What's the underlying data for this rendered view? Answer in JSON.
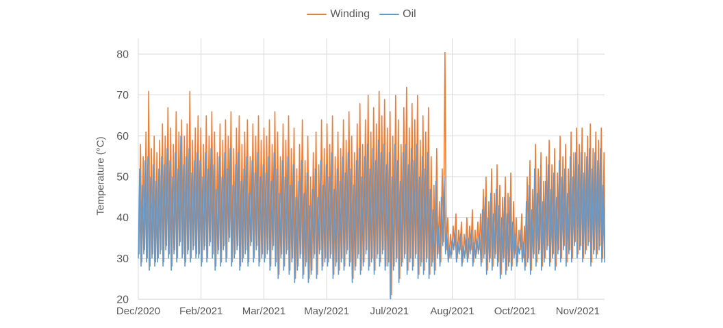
{
  "page": {
    "background": "#FFFFFF"
  },
  "legend": {
    "position": "top-center"
  },
  "chart_data": {
    "type": "line",
    "title": "",
    "ylabel": "Temperature (°C)",
    "ylim": [
      20,
      83.85
    ],
    "yticks": [
      20,
      30,
      40,
      50,
      60,
      70,
      80
    ],
    "x_tick_labels": [
      "Dec/2020",
      "Feb/2021",
      "Mar/2021",
      "May/2021",
      "Jul/2021",
      "Aug/2021",
      "Oct/2021",
      "Nov/2021"
    ],
    "x_range_note": "continuous time axis Dec/2020 through early Dec/2021, evenly spaced ticks",
    "grid": true,
    "legend_position": "top",
    "grid_color": "#D9D9D9",
    "text_color": "#595959",
    "sampling": "noisy high-frequency sensor data approximated as a trough/peak envelope; each index ≈ 2 days; rendered as triangle wave troughs[i] -> peaks[i]",
    "series": [
      {
        "name": "Winding",
        "color": "#ED7D31",
        "troughs_from": "Oil",
        "trough_offset": 1,
        "phase": 0.3,
        "peaks": [
          58,
          55,
          61,
          71,
          57,
          60,
          56,
          59,
          63,
          60,
          67,
          62,
          58,
          66,
          61,
          64,
          60,
          63,
          71,
          59,
          62,
          65,
          62,
          58,
          65,
          60,
          66,
          61,
          56,
          63,
          59,
          64,
          60,
          66,
          57,
          62,
          65,
          58,
          61,
          64,
          55,
          63,
          60,
          65,
          59,
          62,
          60,
          64,
          58,
          66,
          61,
          55,
          63,
          59,
          65,
          57,
          62,
          52,
          58,
          64,
          54,
          60,
          50,
          56,
          61,
          53,
          64,
          57,
          63,
          58,
          65,
          55,
          61,
          57,
          64,
          59,
          66,
          60,
          56,
          63,
          68,
          58,
          64,
          70,
          61,
          67,
          63,
          71,
          65,
          69,
          62,
          66,
          60,
          70,
          64,
          58,
          67,
          72,
          62,
          68,
          64,
          70,
          59,
          65,
          61,
          67,
          55,
          48,
          57,
          44,
          52,
          80.5,
          40,
          36,
          38,
          41,
          37,
          39,
          36,
          40,
          38,
          42,
          37,
          39,
          41,
          47,
          50,
          44,
          52,
          46,
          53,
          48,
          45,
          50,
          46,
          51,
          44,
          40,
          37,
          41,
          38,
          50,
          54,
          47,
          58,
          52,
          56,
          49,
          55,
          59,
          53,
          57,
          51,
          60,
          55,
          58,
          52,
          61,
          56,
          62,
          58,
          62,
          56,
          60,
          63,
          57,
          61,
          59,
          62,
          56,
          61
        ]
      },
      {
        "name": "Oil",
        "color": "#5B9BD5",
        "phase": 0,
        "peaks": [
          52,
          48,
          54,
          55,
          50,
          53,
          49,
          52,
          55,
          53,
          57,
          54,
          50,
          56,
          52,
          60,
          53,
          55,
          57,
          51,
          54,
          56,
          54,
          50,
          56,
          52,
          57,
          53,
          47,
          55,
          50,
          56,
          52,
          57,
          48,
          53,
          56,
          49,
          52,
          55,
          46,
          54,
          51,
          56,
          50,
          53,
          51,
          55,
          49,
          56,
          52,
          46,
          54,
          50,
          55,
          48,
          53,
          45,
          49,
          54,
          46,
          51,
          43,
          47,
          52,
          45,
          54,
          48,
          53,
          50,
          56,
          47,
          52,
          49,
          55,
          51,
          56,
          52,
          48,
          54,
          57,
          50,
          55,
          58,
          52,
          57,
          54,
          59,
          56,
          58,
          53,
          56,
          50,
          58,
          54,
          49,
          56,
          58,
          53,
          57,
          54,
          58,
          50,
          55,
          52,
          56,
          47,
          42,
          49,
          38,
          45,
          50,
          36,
          33,
          35,
          37,
          34,
          36,
          33,
          36,
          35,
          37,
          34,
          35,
          36,
          42,
          45,
          40,
          46,
          41,
          47,
          43,
          40,
          45,
          41,
          45,
          39,
          36,
          33,
          37,
          34,
          44,
          48,
          42,
          52,
          46,
          50,
          44,
          49,
          53,
          47,
          51,
          45,
          54,
          50,
          52,
          46,
          55,
          50,
          56,
          53,
          56,
          51,
          55,
          57,
          52,
          56,
          54,
          57,
          48,
          50
        ],
        "troughs": [
          30,
          28,
          31,
          29,
          27,
          30,
          28,
          29,
          31,
          28,
          32,
          30,
          27,
          31,
          29,
          33,
          30,
          28,
          31,
          29,
          32,
          30,
          30,
          28,
          32,
          29,
          33,
          30,
          27,
          31,
          28,
          32,
          29,
          34,
          28,
          30,
          32,
          27,
          29,
          31,
          28,
          33,
          29,
          32,
          28,
          30,
          29,
          31,
          27,
          32,
          28,
          25,
          30,
          27,
          31,
          26,
          29,
          24,
          27,
          30,
          25,
          28,
          24,
          26,
          30,
          25,
          31,
          27,
          29,
          28,
          30,
          25,
          28,
          26,
          29,
          27,
          31,
          28,
          24,
          27,
          30,
          26,
          28,
          31,
          27,
          29,
          26,
          30,
          28,
          31,
          27,
          28,
          20,
          27,
          29,
          24,
          28,
          30,
          26,
          29,
          27,
          30,
          25,
          28,
          26,
          29,
          25,
          28,
          26,
          30,
          28,
          33,
          31,
          29,
          30,
          32,
          29,
          31,
          28,
          30,
          29,
          31,
          28,
          30,
          31,
          28,
          30,
          26,
          29,
          27,
          30,
          28,
          25,
          29,
          26,
          28,
          27,
          30,
          28,
          31,
          29,
          27,
          29,
          26,
          30,
          28,
          31,
          27,
          29,
          32,
          28,
          30,
          27,
          31,
          29,
          32,
          28,
          31,
          29,
          33,
          30,
          32,
          29,
          31,
          33,
          28,
          31,
          30,
          32,
          29,
          29
        ]
      }
    ]
  }
}
